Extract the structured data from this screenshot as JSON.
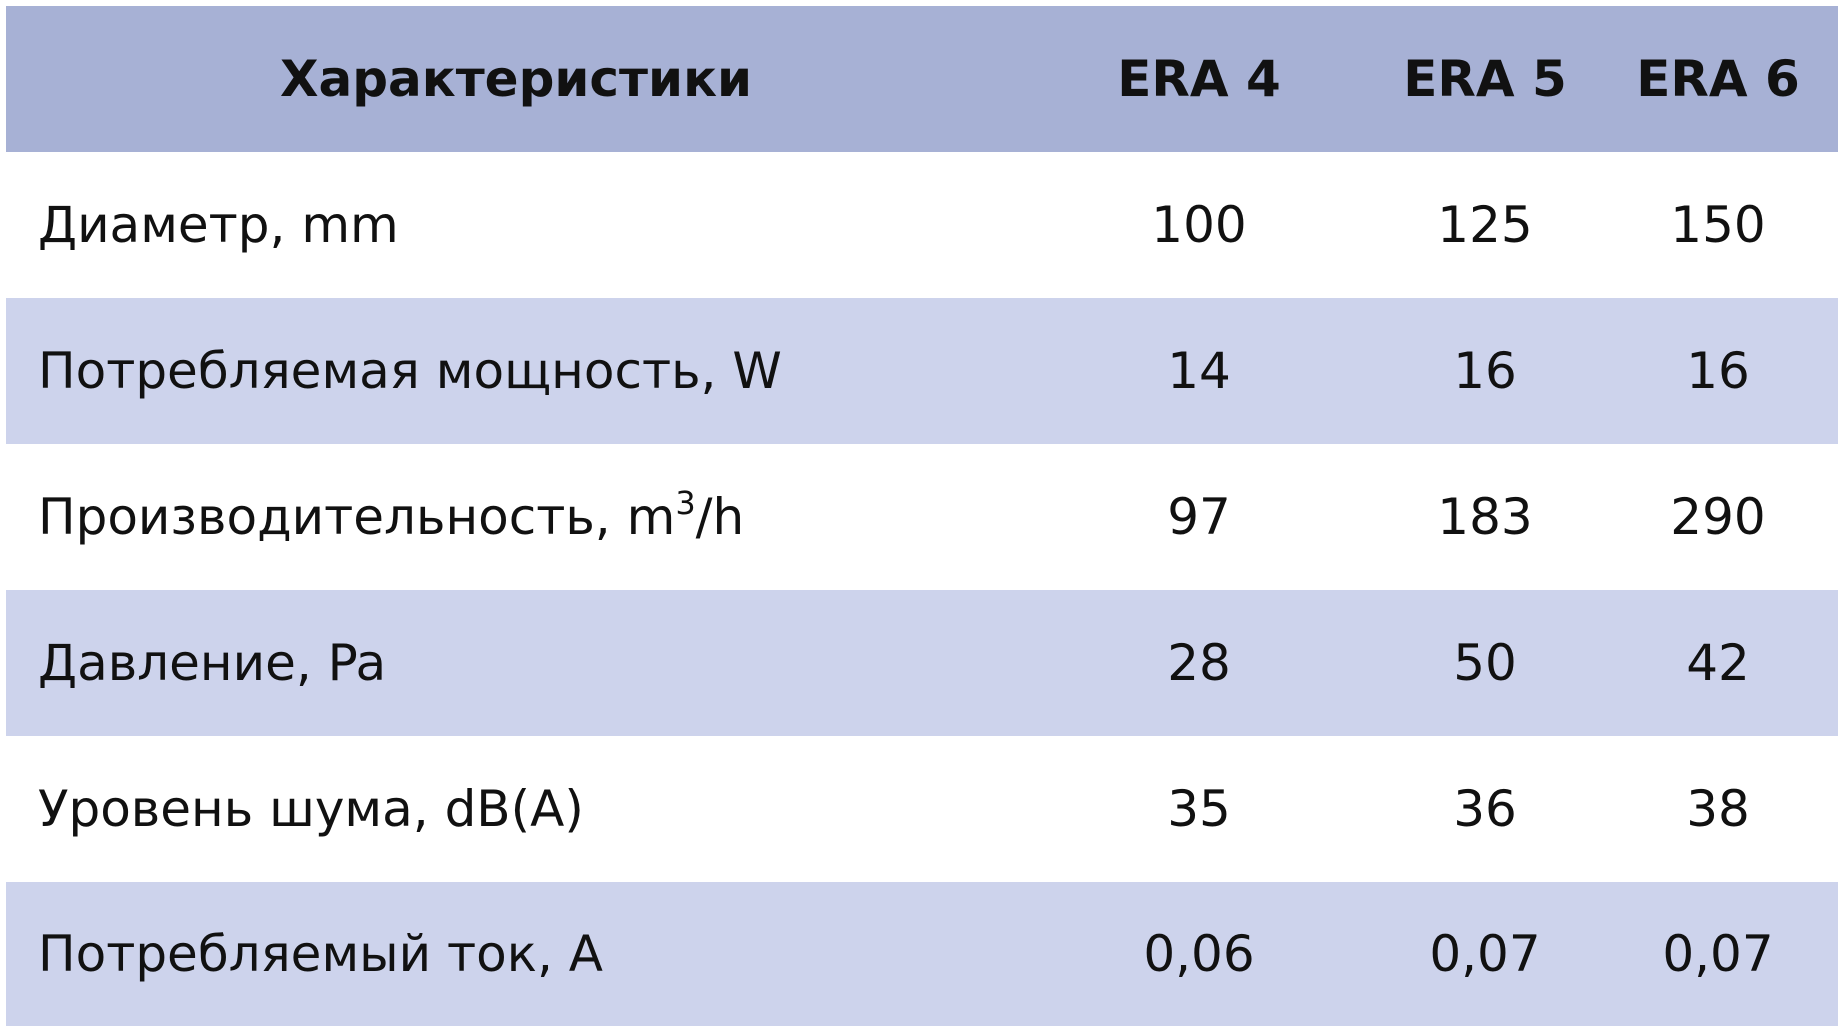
{
  "table": {
    "headers": {
      "label": "Характеристики",
      "models": [
        "ERA 4",
        "ERA 5",
        "ERA 6"
      ]
    },
    "rows": [
      {
        "label": "Диаметр, mm",
        "values": [
          "100",
          "125",
          "150"
        ]
      },
      {
        "label": "Потребляемая мощность, W",
        "values": [
          "14",
          "16",
          "16"
        ]
      },
      {
        "label_prefix": "Производительность, m",
        "label_sup": "3",
        "label_suffix": "/h",
        "values": [
          "97",
          "183",
          "290"
        ]
      },
      {
        "label": "Давление, Pa",
        "values": [
          "28",
          "50",
          "42"
        ]
      },
      {
        "label": "Уровень шума, dB(A)",
        "values": [
          "35",
          "36",
          "38"
        ]
      },
      {
        "label": "Потребляемый ток, A",
        "values": [
          "0,06",
          "0,07",
          "0,07"
        ]
      }
    ],
    "colors": {
      "header_bg": "#a7b1d5",
      "stripe_bg": "#cdd3ec",
      "row_bg": "#ffffff",
      "text": "#111111"
    }
  }
}
